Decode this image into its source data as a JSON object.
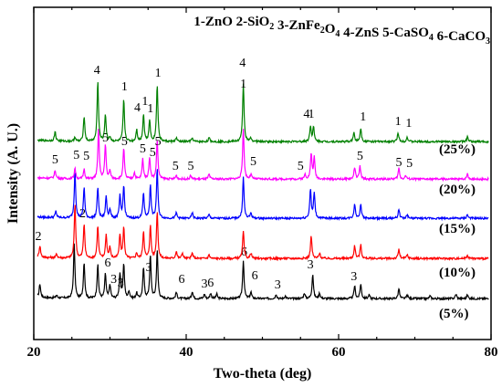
{
  "chart_data": {
    "type": "line",
    "title": "",
    "xlabel": "Two-theta (deg)",
    "ylabel": "Intensity (A. U.)",
    "xlim": [
      20,
      80
    ],
    "x_ticks": [
      20,
      40,
      60,
      80
    ],
    "y_ticks_shown": false,
    "grid": false,
    "legend_text": "1-ZnO 2-SiO₂ 3-ZnFe₂O₄ 4-ZnS 5-CaSO₄ 6-CaCO₃",
    "legend_position": "top-right",
    "series": [
      {
        "label": "(5%)",
        "color": "#000000",
        "baseline": 0.4,
        "peaks": [
          [
            20.8,
            1.5
          ],
          [
            23.0,
            0.3
          ],
          [
            25.3,
            5.9
          ],
          [
            26.6,
            4.0
          ],
          [
            28.4,
            3.7
          ],
          [
            29.4,
            2.7
          ],
          [
            30.0,
            1.5
          ],
          [
            31.3,
            2.7
          ],
          [
            31.8,
            3.8
          ],
          [
            32.5,
            0.8
          ],
          [
            33.5,
            0.6
          ],
          [
            34.4,
            3.4
          ],
          [
            35.3,
            4.7
          ],
          [
            36.2,
            5.3
          ],
          [
            38.7,
            0.7
          ],
          [
            40.8,
            0.8
          ],
          [
            42.4,
            0.5
          ],
          [
            43.2,
            0.6
          ],
          [
            44.0,
            0.5
          ],
          [
            47.5,
            4.2
          ],
          [
            48.5,
            0.7
          ],
          [
            51.8,
            0.5
          ],
          [
            53.0,
            0.3
          ],
          [
            55.5,
            0.6
          ],
          [
            56.6,
            2.7
          ],
          [
            57.5,
            0.6
          ],
          [
            62.1,
            1.4
          ],
          [
            62.9,
            1.6
          ],
          [
            64.0,
            0.4
          ],
          [
            67.9,
            1.1
          ],
          [
            69.0,
            0.4
          ],
          [
            72.0,
            0.3
          ],
          [
            75.4,
            0.5
          ],
          [
            76.9,
            0.4
          ]
        ],
        "annotations": [
          {
            "x": 29.7,
            "y": 3.4,
            "text": "6"
          },
          {
            "x": 30.5,
            "y": 1.6,
            "text": "3"
          },
          {
            "x": 31.4,
            "y": 1.2,
            "text": "3"
          },
          {
            "x": 35.1,
            "y": 2.9,
            "text": "3"
          },
          {
            "x": 39.4,
            "y": 1.6,
            "text": "6"
          },
          {
            "x": 42.4,
            "y": 1.1,
            "text": "3"
          },
          {
            "x": 43.2,
            "y": 1.2,
            "text": "6"
          },
          {
            "x": 47.6,
            "y": 4.6,
            "text": "6"
          },
          {
            "x": 49.0,
            "y": 2.0,
            "text": "6"
          },
          {
            "x": 52.0,
            "y": 1.0,
            "text": "3"
          },
          {
            "x": 56.3,
            "y": 3.2,
            "text": "3"
          },
          {
            "x": 62.0,
            "y": 1.9,
            "text": "3"
          }
        ]
      },
      {
        "label": "(10%)",
        "color": "#ff0000",
        "baseline": 0.4,
        "peaks": [
          [
            20.8,
            1.3
          ],
          [
            23.0,
            0.4
          ],
          [
            25.4,
            6.0
          ],
          [
            26.6,
            3.8
          ],
          [
            28.4,
            3.6
          ],
          [
            29.5,
            2.6
          ],
          [
            30.0,
            1.2
          ],
          [
            31.3,
            2.6
          ],
          [
            31.8,
            3.4
          ],
          [
            33.5,
            0.6
          ],
          [
            34.4,
            3.0
          ],
          [
            35.3,
            3.6
          ],
          [
            36.2,
            5.2
          ],
          [
            38.7,
            0.8
          ],
          [
            39.5,
            0.6
          ],
          [
            40.8,
            0.6
          ],
          [
            43.0,
            0.4
          ],
          [
            47.5,
            3.0
          ],
          [
            48.5,
            0.6
          ],
          [
            56.4,
            2.5
          ],
          [
            57.5,
            0.6
          ],
          [
            62.1,
            1.4
          ],
          [
            62.9,
            1.5
          ],
          [
            67.9,
            1.0
          ],
          [
            69.0,
            0.4
          ],
          [
            76.9,
            0.4
          ]
        ],
        "annotations": [
          {
            "x": 20.6,
            "y": 1.9,
            "text": "2"
          },
          {
            "x": 26.4,
            "y": 4.4,
            "text": "2"
          }
        ]
      },
      {
        "label": "(15%)",
        "color": "#0000ff",
        "baseline": 0.4,
        "peaks": [
          [
            22.9,
            0.7
          ],
          [
            25.4,
            5.2
          ],
          [
            26.6,
            3.4
          ],
          [
            28.4,
            3.4
          ],
          [
            29.5,
            2.4
          ],
          [
            30.0,
            1.0
          ],
          [
            31.3,
            2.4
          ],
          [
            31.8,
            3.6
          ],
          [
            34.4,
            2.8
          ],
          [
            35.3,
            3.6
          ],
          [
            36.2,
            5.4
          ],
          [
            38.7,
            0.6
          ],
          [
            40.8,
            0.6
          ],
          [
            43.0,
            0.4
          ],
          [
            47.5,
            4.5
          ],
          [
            48.5,
            0.6
          ],
          [
            56.3,
            3.2
          ],
          [
            56.8,
            2.8
          ],
          [
            62.1,
            1.6
          ],
          [
            62.9,
            1.6
          ],
          [
            67.9,
            1.0
          ],
          [
            69.0,
            0.4
          ],
          [
            76.9,
            0.4
          ]
        ],
        "annotations": []
      },
      {
        "label": "(20%)",
        "color": "#ff00ff",
        "baseline": 0.4,
        "peaks": [
          [
            22.8,
            0.9
          ],
          [
            25.4,
            1.2
          ],
          [
            26.6,
            1.1
          ],
          [
            28.5,
            5.5
          ],
          [
            29.4,
            3.8
          ],
          [
            30.0,
            0.9
          ],
          [
            31.8,
            3.4
          ],
          [
            33.2,
            0.7
          ],
          [
            34.3,
            2.2
          ],
          [
            35.2,
            2.4
          ],
          [
            36.2,
            4.3
          ],
          [
            38.7,
            0.4
          ],
          [
            40.6,
            0.4
          ],
          [
            43.0,
            0.5
          ],
          [
            47.5,
            5.6
          ],
          [
            48.5,
            0.5
          ],
          [
            55.6,
            0.5
          ],
          [
            56.4,
            2.8
          ],
          [
            56.8,
            2.3
          ],
          [
            62.1,
            1.3
          ],
          [
            62.8,
            1.4
          ],
          [
            67.9,
            1.2
          ],
          [
            68.8,
            0.4
          ],
          [
            76.9,
            0.6
          ]
        ],
        "annotations": [
          {
            "x": 22.8,
            "y": 1.6,
            "text": "5"
          },
          {
            "x": 25.6,
            "y": 2.1,
            "text": "5"
          },
          {
            "x": 26.9,
            "y": 2.0,
            "text": "5"
          },
          {
            "x": 29.4,
            "y": 4.0,
            "text": "5"
          },
          {
            "x": 31.9,
            "y": 3.6,
            "text": "5"
          },
          {
            "x": 34.3,
            "y": 2.8,
            "text": "5"
          },
          {
            "x": 35.6,
            "y": 2.4,
            "text": "5"
          },
          {
            "x": 36.3,
            "y": 3.6,
            "text": "5"
          },
          {
            "x": 38.6,
            "y": 0.9,
            "text": "5"
          },
          {
            "x": 40.6,
            "y": 0.9,
            "text": "5"
          },
          {
            "x": 48.8,
            "y": 1.4,
            "text": "5"
          },
          {
            "x": 55.0,
            "y": 0.9,
            "text": "5"
          },
          {
            "x": 62.8,
            "y": 2.0,
            "text": "5"
          },
          {
            "x": 67.9,
            "y": 1.3,
            "text": "5"
          },
          {
            "x": 69.3,
            "y": 1.2,
            "text": "5"
          }
        ]
      },
      {
        "label": "(25%)",
        "color": "#008000",
        "baseline": 0.4,
        "peaks": [
          [
            22.8,
            1.0
          ],
          [
            25.4,
            0.5
          ],
          [
            26.6,
            2.8
          ],
          [
            28.4,
            6.6
          ],
          [
            29.4,
            3.0
          ],
          [
            30.0,
            0.5
          ],
          [
            31.8,
            4.6
          ],
          [
            33.5,
            1.3
          ],
          [
            34.4,
            3.0
          ],
          [
            35.2,
            2.4
          ],
          [
            36.2,
            6.3
          ],
          [
            38.7,
            0.4
          ],
          [
            40.8,
            0.4
          ],
          [
            43.0,
            0.4
          ],
          [
            47.5,
            6.4
          ],
          [
            48.5,
            0.4
          ],
          [
            56.3,
            1.7
          ],
          [
            56.7,
            1.6
          ],
          [
            62.0,
            1.0
          ],
          [
            62.9,
            1.5
          ],
          [
            67.8,
            1.0
          ],
          [
            69.0,
            0.5
          ],
          [
            76.9,
            0.5
          ]
        ],
        "annotations": [
          {
            "x": 28.3,
            "y": 7.3,
            "text": "4"
          },
          {
            "x": 31.9,
            "y": 5.5,
            "text": "1"
          },
          {
            "x": 33.6,
            "y": 3.2,
            "text": "4"
          },
          {
            "x": 34.6,
            "y": 3.9,
            "text": "1"
          },
          {
            "x": 35.3,
            "y": 3.1,
            "text": "1"
          },
          {
            "x": 36.3,
            "y": 7.0,
            "text": "1"
          },
          {
            "x": 47.4,
            "y": 8.1,
            "text": "4"
          },
          {
            "x": 47.5,
            "y": 5.8,
            "text": "1"
          },
          {
            "x": 55.8,
            "y": 2.5,
            "text": "4"
          },
          {
            "x": 56.4,
            "y": 2.5,
            "text": "1"
          },
          {
            "x": 63.2,
            "y": 2.2,
            "text": "1"
          },
          {
            "x": 67.8,
            "y": 1.7,
            "text": "1"
          },
          {
            "x": 69.2,
            "y": 1.5,
            "text": "1"
          }
        ]
      }
    ]
  }
}
